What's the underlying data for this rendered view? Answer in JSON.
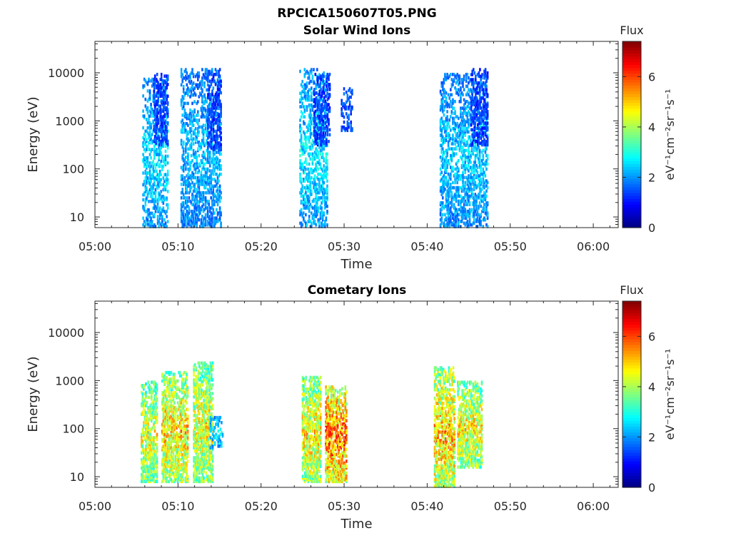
{
  "figure_title": "RPCICA150607T05.PNG",
  "colors": {
    "axes": "#262626",
    "background": "#ffffff"
  },
  "chart_data": [
    {
      "type": "heatmap",
      "title": "Solar Wind Ions",
      "xlabel": "Time",
      "ylabel": "Energy (eV)",
      "x_unit": "HH:MM",
      "x_ticks": [
        "05:00",
        "05:10",
        "05:20",
        "05:30",
        "05:40",
        "05:50",
        "06:00"
      ],
      "xlim": [
        "05:00",
        "06:03"
      ],
      "y_scale": "log",
      "y_ticks": [
        "10",
        "100",
        "1000",
        "10000"
      ],
      "ylim": [
        6,
        45000
      ],
      "colorbar": {
        "label": "Flux",
        "unit_label": "eV⁻¹cm⁻²sr⁻¹s⁻¹",
        "range": [
          0,
          7.4
        ],
        "ticks": [
          "0",
          "2",
          "4",
          "6"
        ],
        "colormap": "jet"
      },
      "clusters": [
        {
          "t0": 5.7,
          "t1": 8.8,
          "ehigh_log": 3.9,
          "elow_log": 0.8,
          "flux": 2.5
        },
        {
          "t0": 7.0,
          "t1": 8.8,
          "ehigh_log": 4.0,
          "elow_log": 2.5,
          "flux": 1.2
        },
        {
          "t0": 10.3,
          "t1": 15.2,
          "ehigh_log": 4.1,
          "elow_log": 0.8,
          "flux": 2.3
        },
        {
          "t0": 13.5,
          "t1": 15.2,
          "ehigh_log": 4.0,
          "elow_log": 2.4,
          "flux": 1.2
        },
        {
          "t0": 24.6,
          "t1": 28.0,
          "ehigh_log": 4.1,
          "elow_log": 0.8,
          "flux": 2.6
        },
        {
          "t0": 26.3,
          "t1": 28.3,
          "ehigh_log": 4.0,
          "elow_log": 2.5,
          "flux": 1.2
        },
        {
          "t0": 29.6,
          "t1": 31.0,
          "ehigh_log": 3.7,
          "elow_log": 2.8,
          "flux": 1.4
        },
        {
          "t0": 41.5,
          "t1": 47.3,
          "ehigh_log": 4.0,
          "elow_log": 0.8,
          "flux": 2.4
        },
        {
          "t0": 45.2,
          "t1": 47.3,
          "ehigh_log": 4.1,
          "elow_log": 2.5,
          "flux": 1.2
        }
      ]
    },
    {
      "type": "heatmap",
      "title": "Cometary Ions",
      "xlabel": "Time",
      "ylabel": "Energy (eV)",
      "x_unit": "HH:MM",
      "x_ticks": [
        "05:00",
        "05:10",
        "05:20",
        "05:30",
        "05:40",
        "05:50",
        "06:00"
      ],
      "xlim": [
        "05:00",
        "06:03"
      ],
      "y_scale": "log",
      "y_ticks": [
        "10",
        "100",
        "1000",
        "10000"
      ],
      "ylim": [
        6,
        45000
      ],
      "colorbar": {
        "label": "Flux",
        "unit_label": "eV⁻¹cm⁻²sr⁻¹s⁻¹",
        "range": [
          0,
          7.4
        ],
        "ticks": [
          "0",
          "2",
          "4",
          "6"
        ],
        "colormap": "jet"
      },
      "clusters": [
        {
          "t0": 5.5,
          "t1": 7.5,
          "ehigh_log": 3.0,
          "elow_log": 0.9,
          "flux": 4.4
        },
        {
          "t0": 8.0,
          "t1": 11.2,
          "ehigh_log": 3.2,
          "elow_log": 0.9,
          "flux": 4.8
        },
        {
          "t0": 11.8,
          "t1": 14.2,
          "ehigh_log": 3.4,
          "elow_log": 0.9,
          "flux": 4.5
        },
        {
          "t0": 13.8,
          "t1": 15.4,
          "ehigh_log": 2.3,
          "elow_log": 1.6,
          "flux": 2.6
        },
        {
          "t0": 24.9,
          "t1": 27.2,
          "ehigh_log": 3.1,
          "elow_log": 0.9,
          "flux": 4.7
        },
        {
          "t0": 27.7,
          "t1": 30.3,
          "ehigh_log": 2.9,
          "elow_log": 0.9,
          "flux": 5.6
        },
        {
          "t0": 40.8,
          "t1": 43.3,
          "ehigh_log": 3.3,
          "elow_log": 0.8,
          "flux": 5.0
        },
        {
          "t0": 43.6,
          "t1": 46.6,
          "ehigh_log": 3.0,
          "elow_log": 1.2,
          "flux": 4.6
        }
      ]
    }
  ]
}
